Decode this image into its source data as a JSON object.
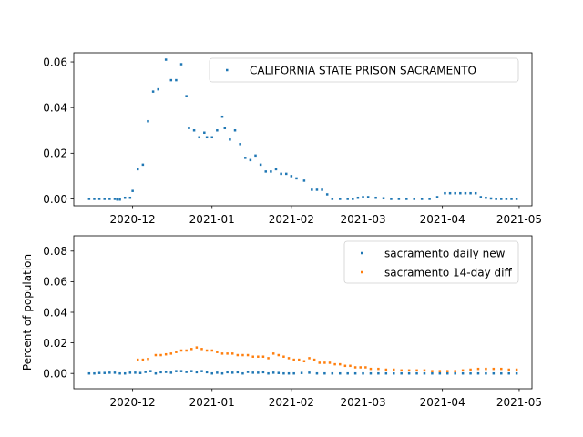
{
  "chart_data": [
    {
      "type": "scatter",
      "ylabel": "",
      "xlim": [
        "2020-11-08",
        "2021-05-06"
      ],
      "ylim": [
        -0.003,
        0.064
      ],
      "x_ticks": [
        "2020-12",
        "2021-01",
        "2021-02",
        "2021-03",
        "2021-04",
        "2021-05"
      ],
      "y_ticks": [
        "0.00",
        "0.02",
        "0.04",
        "0.06"
      ],
      "legend": "top-right",
      "series": [
        {
          "name": "CALIFORNIA STATE PRISON SACRAMENTO",
          "color": "#1f77b4",
          "points": [
            [
              "2020-11-14",
              0.0
            ],
            [
              "2020-11-16",
              0.0
            ],
            [
              "2020-11-18",
              0.0
            ],
            [
              "2020-11-20",
              0.0
            ],
            [
              "2020-11-22",
              0.0
            ],
            [
              "2020-11-24",
              0.0
            ],
            [
              "2020-11-25",
              -0.0003
            ],
            [
              "2020-11-26",
              -0.0003
            ],
            [
              "2020-11-28",
              0.0005
            ],
            [
              "2020-11-30",
              0.0005
            ],
            [
              "2020-12-01",
              0.0035
            ],
            [
              "2020-12-03",
              0.013
            ],
            [
              "2020-12-05",
              0.015
            ],
            [
              "2020-12-07",
              0.034
            ],
            [
              "2020-12-09",
              0.047
            ],
            [
              "2020-12-11",
              0.048
            ],
            [
              "2020-12-14",
              0.061
            ],
            [
              "2020-12-16",
              0.052
            ],
            [
              "2020-12-18",
              0.052
            ],
            [
              "2020-12-20",
              0.059
            ],
            [
              "2020-12-22",
              0.045
            ],
            [
              "2020-12-23",
              0.031
            ],
            [
              "2020-12-25",
              0.03
            ],
            [
              "2020-12-27",
              0.027
            ],
            [
              "2020-12-29",
              0.029
            ],
            [
              "2020-12-30",
              0.027
            ],
            [
              "2021-01-01",
              0.027
            ],
            [
              "2021-01-03",
              0.03
            ],
            [
              "2021-01-05",
              0.036
            ],
            [
              "2021-01-06",
              0.031
            ],
            [
              "2021-01-08",
              0.026
            ],
            [
              "2021-01-10",
              0.03
            ],
            [
              "2021-01-12",
              0.024
            ],
            [
              "2021-01-14",
              0.018
            ],
            [
              "2021-01-16",
              0.017
            ],
            [
              "2021-01-18",
              0.019
            ],
            [
              "2021-01-20",
              0.015
            ],
            [
              "2021-01-22",
              0.012
            ],
            [
              "2021-01-24",
              0.012
            ],
            [
              "2021-01-26",
              0.013
            ],
            [
              "2021-01-28",
              0.011
            ],
            [
              "2021-01-30",
              0.011
            ],
            [
              "2021-02-01",
              0.01
            ],
            [
              "2021-02-03",
              0.009
            ],
            [
              "2021-02-06",
              0.008
            ],
            [
              "2021-02-09",
              0.004
            ],
            [
              "2021-02-11",
              0.004
            ],
            [
              "2021-02-13",
              0.004
            ],
            [
              "2021-02-15",
              0.002
            ],
            [
              "2021-02-17",
              0.0
            ],
            [
              "2021-02-20",
              0.0
            ],
            [
              "2021-02-23",
              0.0
            ],
            [
              "2021-02-25",
              0.0
            ],
            [
              "2021-02-27",
              0.0005
            ],
            [
              "2021-03-01",
              0.0008
            ],
            [
              "2021-03-03",
              0.0008
            ],
            [
              "2021-03-06",
              0.0005
            ],
            [
              "2021-03-09",
              0.0003
            ],
            [
              "2021-03-12",
              0.0
            ],
            [
              "2021-03-15",
              0.0
            ],
            [
              "2021-03-18",
              0.0
            ],
            [
              "2021-03-21",
              0.0
            ],
            [
              "2021-03-24",
              0.0
            ],
            [
              "2021-03-27",
              0.0
            ],
            [
              "2021-03-30",
              0.0008
            ],
            [
              "2021-04-02",
              0.0025
            ],
            [
              "2021-04-04",
              0.0025
            ],
            [
              "2021-04-06",
              0.0025
            ],
            [
              "2021-04-08",
              0.0025
            ],
            [
              "2021-04-10",
              0.0025
            ],
            [
              "2021-04-12",
              0.0025
            ],
            [
              "2021-04-14",
              0.0025
            ],
            [
              "2021-04-16",
              0.0008
            ],
            [
              "2021-04-18",
              0.0005
            ],
            [
              "2021-04-20",
              0.0002
            ],
            [
              "2021-04-22",
              0.0
            ],
            [
              "2021-04-24",
              0.0
            ],
            [
              "2021-04-26",
              0.0
            ],
            [
              "2021-04-28",
              0.0
            ],
            [
              "2021-04-30",
              0.0
            ]
          ]
        }
      ]
    },
    {
      "type": "scatter",
      "ylabel": "Percent of population",
      "xlim": [
        "2020-11-08",
        "2021-05-06"
      ],
      "ylim": [
        -0.01,
        0.09
      ],
      "x_ticks": [
        "2020-12",
        "2021-01",
        "2021-02",
        "2021-03",
        "2021-04",
        "2021-05"
      ],
      "y_ticks": [
        "0.00",
        "0.02",
        "0.04",
        "0.06",
        "0.08"
      ],
      "legend": "top-right",
      "series": [
        {
          "name": "sacramento daily new",
          "color": "#1f77b4",
          "points": [
            [
              "2020-11-14",
              0.0
            ],
            [
              "2020-11-16",
              0.0
            ],
            [
              "2020-11-18",
              0.0003
            ],
            [
              "2020-11-20",
              0.0003
            ],
            [
              "2020-11-22",
              0.0005
            ],
            [
              "2020-11-24",
              0.0005
            ],
            [
              "2020-11-26",
              0.0
            ],
            [
              "2020-11-28",
              0.0
            ],
            [
              "2020-11-30",
              0.0005
            ],
            [
              "2020-12-02",
              0.0005
            ],
            [
              "2020-12-04",
              0.0003
            ],
            [
              "2020-12-06",
              0.001
            ],
            [
              "2020-12-08",
              0.0015
            ],
            [
              "2020-12-10",
              0.0
            ],
            [
              "2020-12-12",
              0.0008
            ],
            [
              "2020-12-14",
              0.001
            ],
            [
              "2020-12-16",
              0.0005
            ],
            [
              "2020-12-18",
              0.0015
            ],
            [
              "2020-12-20",
              0.0015
            ],
            [
              "2020-12-22",
              0.001
            ],
            [
              "2020-12-24",
              0.0015
            ],
            [
              "2020-12-26",
              0.0008
            ],
            [
              "2020-12-28",
              0.0015
            ],
            [
              "2020-12-30",
              0.0008
            ],
            [
              "2021-01-01",
              0.0
            ],
            [
              "2021-01-03",
              0.0005
            ],
            [
              "2021-01-05",
              0.0
            ],
            [
              "2021-01-07",
              0.0008
            ],
            [
              "2021-01-09",
              0.0005
            ],
            [
              "2021-01-11",
              0.0008
            ],
            [
              "2021-01-13",
              0.0
            ],
            [
              "2021-01-15",
              0.001
            ],
            [
              "2021-01-17",
              0.0005
            ],
            [
              "2021-01-19",
              0.0005
            ],
            [
              "2021-01-21",
              0.0008
            ],
            [
              "2021-01-23",
              0.0
            ],
            [
              "2021-01-25",
              0.0005
            ],
            [
              "2021-01-27",
              0.0003
            ],
            [
              "2021-01-29",
              0.0
            ],
            [
              "2021-01-31",
              0.0
            ],
            [
              "2021-02-02",
              0.0
            ],
            [
              "2021-02-05",
              0.0003
            ],
            [
              "2021-02-08",
              0.0005
            ],
            [
              "2021-02-11",
              0.0
            ],
            [
              "2021-02-14",
              0.0
            ],
            [
              "2021-02-17",
              0.0
            ],
            [
              "2021-02-20",
              0.0
            ],
            [
              "2021-02-23",
              0.0
            ],
            [
              "2021-02-26",
              0.0
            ],
            [
              "2021-03-01",
              0.0
            ],
            [
              "2021-03-04",
              0.0
            ],
            [
              "2021-03-07",
              0.0
            ],
            [
              "2021-03-10",
              0.0
            ],
            [
              "2021-03-13",
              0.0
            ],
            [
              "2021-03-16",
              0.0
            ],
            [
              "2021-03-19",
              0.0
            ],
            [
              "2021-03-22",
              0.0
            ],
            [
              "2021-03-25",
              0.0
            ],
            [
              "2021-03-28",
              0.0
            ],
            [
              "2021-03-31",
              0.0
            ],
            [
              "2021-04-03",
              0.0
            ],
            [
              "2021-04-06",
              0.0
            ],
            [
              "2021-04-09",
              0.0
            ],
            [
              "2021-04-12",
              0.0
            ],
            [
              "2021-04-15",
              0.0
            ],
            [
              "2021-04-18",
              0.0
            ],
            [
              "2021-04-21",
              0.0
            ],
            [
              "2021-04-24",
              0.0
            ],
            [
              "2021-04-27",
              0.0
            ],
            [
              "2021-04-30",
              0.0
            ]
          ]
        },
        {
          "name": "sacramento 14-day diff",
          "color": "#ff7f0e",
          "points": [
            [
              "2020-12-03",
              0.009
            ],
            [
              "2020-12-05",
              0.009
            ],
            [
              "2020-12-07",
              0.0095
            ],
            [
              "2020-12-10",
              0.012
            ],
            [
              "2020-12-12",
              0.012
            ],
            [
              "2020-12-14",
              0.0125
            ],
            [
              "2020-12-16",
              0.013
            ],
            [
              "2020-12-18",
              0.014
            ],
            [
              "2020-12-20",
              0.015
            ],
            [
              "2020-12-22",
              0.015
            ],
            [
              "2020-12-24",
              0.016
            ],
            [
              "2020-12-26",
              0.017
            ],
            [
              "2020-12-28",
              0.016
            ],
            [
              "2020-12-30",
              0.015
            ],
            [
              "2021-01-01",
              0.015
            ],
            [
              "2021-01-03",
              0.014
            ],
            [
              "2021-01-05",
              0.013
            ],
            [
              "2021-01-07",
              0.013
            ],
            [
              "2021-01-09",
              0.013
            ],
            [
              "2021-01-11",
              0.012
            ],
            [
              "2021-01-13",
              0.012
            ],
            [
              "2021-01-15",
              0.012
            ],
            [
              "2021-01-17",
              0.011
            ],
            [
              "2021-01-19",
              0.011
            ],
            [
              "2021-01-21",
              0.011
            ],
            [
              "2021-01-23",
              0.01
            ],
            [
              "2021-01-25",
              0.013
            ],
            [
              "2021-01-27",
              0.012
            ],
            [
              "2021-01-29",
              0.011
            ],
            [
              "2021-01-31",
              0.01
            ],
            [
              "2021-02-02",
              0.009
            ],
            [
              "2021-02-04",
              0.009
            ],
            [
              "2021-02-06",
              0.008
            ],
            [
              "2021-02-08",
              0.01
            ],
            [
              "2021-02-10",
              0.009
            ],
            [
              "2021-02-12",
              0.007
            ],
            [
              "2021-02-14",
              0.007
            ],
            [
              "2021-02-16",
              0.007
            ],
            [
              "2021-02-18",
              0.006
            ],
            [
              "2021-02-20",
              0.006
            ],
            [
              "2021-02-22",
              0.005
            ],
            [
              "2021-02-24",
              0.005
            ],
            [
              "2021-02-26",
              0.004
            ],
            [
              "2021-02-28",
              0.004
            ],
            [
              "2021-03-02",
              0.004
            ],
            [
              "2021-03-04",
              0.003
            ],
            [
              "2021-03-07",
              0.003
            ],
            [
              "2021-03-10",
              0.0025
            ],
            [
              "2021-03-13",
              0.0025
            ],
            [
              "2021-03-16",
              0.002
            ],
            [
              "2021-03-19",
              0.002
            ],
            [
              "2021-03-22",
              0.002
            ],
            [
              "2021-03-25",
              0.002
            ],
            [
              "2021-03-28",
              0.0015
            ],
            [
              "2021-03-31",
              0.0015
            ],
            [
              "2021-04-03",
              0.0015
            ],
            [
              "2021-04-06",
              0.0015
            ],
            [
              "2021-04-09",
              0.002
            ],
            [
              "2021-04-12",
              0.0025
            ],
            [
              "2021-04-15",
              0.003
            ],
            [
              "2021-04-18",
              0.003
            ],
            [
              "2021-04-21",
              0.003
            ],
            [
              "2021-04-24",
              0.003
            ],
            [
              "2021-04-27",
              0.0025
            ],
            [
              "2021-04-30",
              0.0025
            ]
          ]
        }
      ]
    }
  ]
}
